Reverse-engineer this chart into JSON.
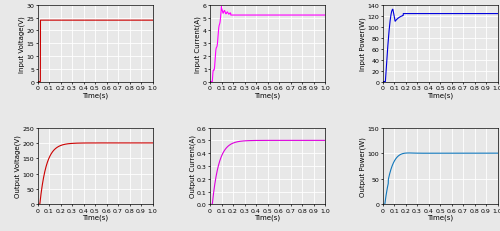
{
  "subplots": [
    {
      "ylabel": "Input Voltage(V)",
      "xlabel": "Time(s)",
      "color": "#cc0000",
      "ylim": [
        0,
        30
      ],
      "yticks": [
        0,
        5,
        10,
        15,
        20,
        25,
        30
      ],
      "steady_value": 24,
      "rise_time": 0.025,
      "type": "step"
    },
    {
      "ylabel": "Input Current(A)",
      "xlabel": "Time(s)",
      "color": "#ff00ff",
      "ylim": [
        0,
        6
      ],
      "yticks": [
        0,
        1,
        2,
        3,
        4,
        5,
        6
      ],
      "steady_value": 5.2,
      "peak_value": 5.55,
      "peak_time": 0.1,
      "rise_time": 0.02,
      "settle_time": 0.18,
      "oscillation_amp": 0.35,
      "oscillation_freq": 80,
      "type": "rise_with_overshoot_oscillate"
    },
    {
      "ylabel": "Input Power(W)",
      "xlabel": "Time(s)",
      "color": "#0000dd",
      "ylim": [
        0,
        140
      ],
      "yticks": [
        0,
        20,
        40,
        60,
        80,
        100,
        120,
        140
      ],
      "steady_value": 124,
      "peak_value": 132,
      "dip_value": 110,
      "peak_time": 0.09,
      "dip_time": 0.1,
      "rise_time": 0.025,
      "settle_time": 0.18,
      "type": "rise_dip_settle"
    },
    {
      "ylabel": "Output Voltage(V)",
      "xlabel": "Time(s)",
      "color": "#cc0000",
      "ylim": [
        0,
        250
      ],
      "yticks": [
        0,
        50,
        100,
        150,
        200,
        250
      ],
      "steady_value": 200,
      "rise_time": 0.02,
      "settle_time": 0.22,
      "type": "fast_exp_rise"
    },
    {
      "ylabel": "Output Current(A)",
      "xlabel": "Time(s)",
      "color": "#dd00dd",
      "ylim": [
        0,
        0.6
      ],
      "yticks": [
        0,
        0.1,
        0.2,
        0.3,
        0.4,
        0.5,
        0.6
      ],
      "steady_value": 0.5,
      "rise_time": 0.02,
      "settle_time": 0.22,
      "type": "fast_exp_rise"
    },
    {
      "ylabel": "Output Power(W)",
      "xlabel": "Time(s)",
      "color": "#1177bb",
      "ylim": [
        0,
        150
      ],
      "yticks": [
        0,
        50,
        100,
        150
      ],
      "steady_value": 100,
      "rise_time": 0.02,
      "settle_time": 0.22,
      "type": "fast_exp_rise_with_bump"
    }
  ],
  "xticks": [
    0,
    0.1,
    0.2,
    0.3,
    0.4,
    0.5,
    0.6,
    0.7,
    0.8,
    0.9,
    1
  ],
  "xlim": [
    0,
    1
  ],
  "background": "#e8e8e8",
  "grid_color": "#ffffff",
  "tick_fontsize": 4.5,
  "label_fontsize": 5.0
}
